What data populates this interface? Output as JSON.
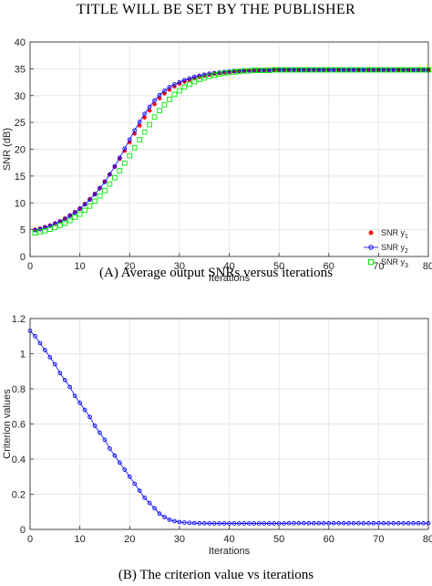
{
  "page_title": "TITLE WILL BE SET BY THE PUBLISHER",
  "colors": {
    "y1": "#ff0000",
    "y2": "#0000ff",
    "y3": "#00ee00",
    "criterion": "#0000ff",
    "grid": "#e6e6e6"
  },
  "chart_data": [
    {
      "type": "scatter",
      "caption": "(A) Average output SNRs versus iterations",
      "xlabel": "Iterations",
      "ylabel": "SNR (dB)",
      "xlim": [
        0,
        80
      ],
      "ylim": [
        0,
        40
      ],
      "xticks": [
        0,
        10,
        20,
        30,
        40,
        50,
        60,
        70,
        80
      ],
      "yticks": [
        0,
        5,
        10,
        15,
        20,
        25,
        30,
        35,
        40
      ],
      "grid": true,
      "legend_position": "right",
      "series": [
        {
          "name": "SNR y",
          "sub": "1",
          "marker": "star",
          "color": "#ff0000",
          "x": [
            1,
            2,
            3,
            4,
            5,
            6,
            7,
            8,
            9,
            10,
            11,
            12,
            13,
            14,
            15,
            16,
            17,
            18,
            19,
            20,
            21,
            22,
            23,
            24,
            25,
            26,
            27,
            28,
            29,
            30,
            31,
            32,
            33,
            34,
            35,
            36,
            37,
            38,
            39,
            40,
            41,
            42,
            43,
            44,
            45,
            46,
            47,
            48,
            49,
            50,
            51,
            52,
            53,
            54,
            55,
            56,
            57,
            58,
            59,
            60,
            61,
            62,
            63,
            64,
            65,
            66,
            67,
            68,
            69,
            70,
            71,
            72,
            73,
            74,
            75,
            76,
            77,
            78,
            79,
            80
          ],
          "y": [
            5.0,
            5.2,
            5.5,
            5.8,
            6.2,
            6.6,
            7.1,
            7.7,
            8.3,
            9.0,
            9.8,
            10.7,
            11.7,
            12.8,
            14.0,
            15.3,
            16.7,
            18.2,
            19.7,
            21.3,
            22.9,
            24.4,
            25.9,
            27.2,
            28.4,
            29.5,
            30.4,
            31.1,
            31.7,
            32.2,
            32.6,
            32.9,
            33.2,
            33.5,
            33.7,
            33.9,
            34.1,
            34.2,
            34.3,
            34.4,
            34.5,
            34.6,
            34.6,
            34.7,
            34.7,
            34.7,
            34.7,
            34.7,
            34.8,
            34.8,
            34.8,
            34.8,
            34.8,
            34.8,
            34.8,
            34.8,
            34.8,
            34.8,
            34.8,
            34.8,
            34.8,
            34.8,
            34.8,
            34.8,
            34.8,
            34.8,
            34.8,
            34.8,
            34.8,
            34.8,
            34.8,
            34.8,
            34.8,
            34.8,
            34.8,
            34.8,
            34.8,
            34.8,
            34.8,
            34.8
          ]
        },
        {
          "name": "SNR y",
          "sub": "2",
          "marker": "circle-line",
          "color": "#0000ff",
          "x": [
            1,
            2,
            3,
            4,
            5,
            6,
            7,
            8,
            9,
            10,
            11,
            12,
            13,
            14,
            15,
            16,
            17,
            18,
            19,
            20,
            21,
            22,
            23,
            24,
            25,
            26,
            27,
            28,
            29,
            30,
            31,
            32,
            33,
            34,
            35,
            36,
            37,
            38,
            39,
            40,
            41,
            42,
            43,
            44,
            45,
            46,
            47,
            48,
            49,
            50,
            51,
            52,
            53,
            54,
            55,
            56,
            57,
            58,
            59,
            60,
            61,
            62,
            63,
            64,
            65,
            66,
            67,
            68,
            69,
            70,
            71,
            72,
            73,
            74,
            75,
            76,
            77,
            78,
            79,
            80
          ],
          "y": [
            4.9,
            5.1,
            5.4,
            5.7,
            6.1,
            6.5,
            7.0,
            7.6,
            8.2,
            8.9,
            9.7,
            10.6,
            11.6,
            12.7,
            13.9,
            15.3,
            16.8,
            18.4,
            20.1,
            21.8,
            23.5,
            25.1,
            26.6,
            27.9,
            29.1,
            30.1,
            30.9,
            31.6,
            32.1,
            32.5,
            32.9,
            33.2,
            33.5,
            33.7,
            33.9,
            34.1,
            34.2,
            34.3,
            34.4,
            34.5,
            34.6,
            34.6,
            34.7,
            34.7,
            34.7,
            34.7,
            34.8,
            34.8,
            34.8,
            34.8,
            34.8,
            34.8,
            34.8,
            34.8,
            34.8,
            34.8,
            34.8,
            34.8,
            34.8,
            34.8,
            34.8,
            34.8,
            34.8,
            34.8,
            34.8,
            34.8,
            34.8,
            34.8,
            34.8,
            34.8,
            34.8,
            34.8,
            34.8,
            34.8,
            34.8,
            34.8,
            34.8,
            34.8,
            34.8,
            34.8
          ]
        },
        {
          "name": "SNR y",
          "sub": "3",
          "marker": "square",
          "color": "#00ee00",
          "x": [
            1,
            2,
            3,
            4,
            5,
            6,
            7,
            8,
            9,
            10,
            11,
            12,
            13,
            14,
            15,
            16,
            17,
            18,
            19,
            20,
            21,
            22,
            23,
            24,
            25,
            26,
            27,
            28,
            29,
            30,
            31,
            32,
            33,
            34,
            35,
            36,
            37,
            38,
            39,
            40,
            41,
            42,
            43,
            44,
            45,
            46,
            47,
            48,
            49,
            50,
            51,
            52,
            53,
            54,
            55,
            56,
            57,
            58,
            59,
            60,
            61,
            62,
            63,
            64,
            65,
            66,
            67,
            68,
            69,
            70,
            71,
            72,
            73,
            74,
            75,
            76,
            77,
            78,
            79,
            80
          ],
          "y": [
            4.4,
            4.6,
            4.8,
            5.1,
            5.4,
            5.8,
            6.2,
            6.7,
            7.3,
            7.9,
            8.6,
            9.4,
            10.3,
            11.3,
            12.3,
            13.5,
            14.7,
            16.0,
            17.4,
            18.8,
            20.3,
            21.8,
            23.2,
            24.6,
            26.0,
            27.2,
            28.3,
            29.3,
            30.2,
            30.9,
            31.6,
            32.1,
            32.6,
            33.0,
            33.3,
            33.6,
            33.8,
            34.0,
            34.2,
            34.3,
            34.4,
            34.5,
            34.6,
            34.6,
            34.7,
            34.7,
            34.7,
            34.7,
            34.8,
            34.8,
            34.8,
            34.8,
            34.8,
            34.8,
            34.8,
            34.8,
            34.8,
            34.8,
            34.8,
            34.8,
            34.8,
            34.8,
            34.8,
            34.8,
            34.8,
            34.8,
            34.8,
            34.8,
            34.8,
            34.8,
            34.8,
            34.8,
            34.8,
            34.8,
            34.8,
            34.8,
            34.8,
            34.8,
            34.8,
            34.8
          ]
        }
      ]
    },
    {
      "type": "line",
      "caption": "(B) The criterion value vs iterations",
      "xlabel": "Iterations",
      "ylabel": "Criterion values",
      "xlim": [
        0,
        80
      ],
      "ylim": [
        0,
        1.2
      ],
      "xticks": [
        0,
        10,
        20,
        30,
        40,
        50,
        60,
        70,
        80
      ],
      "yticks": [
        0,
        0.2,
        0.4,
        0.6,
        0.8,
        1,
        1.2
      ],
      "ytick_labels": [
        "0",
        "0.2",
        "0.4",
        "0.6",
        "0.8",
        "1",
        "1.2"
      ],
      "grid": true,
      "series": [
        {
          "name": "",
          "marker": "circle-line",
          "color": "#0000ff",
          "x": [
            0,
            1,
            2,
            3,
            4,
            5,
            6,
            7,
            8,
            9,
            10,
            11,
            12,
            13,
            14,
            15,
            16,
            17,
            18,
            19,
            20,
            21,
            22,
            23,
            24,
            25,
            26,
            27,
            28,
            29,
            30,
            31,
            32,
            33,
            34,
            35,
            36,
            37,
            38,
            39,
            40,
            41,
            42,
            43,
            44,
            45,
            46,
            47,
            48,
            49,
            50,
            51,
            52,
            53,
            54,
            55,
            56,
            57,
            58,
            59,
            60,
            61,
            62,
            63,
            64,
            65,
            66,
            67,
            68,
            69,
            70,
            71,
            72,
            73,
            74,
            75,
            76,
            77,
            78,
            79,
            80
          ],
          "y": [
            1.13,
            1.1,
            1.06,
            1.02,
            0.98,
            0.94,
            0.89,
            0.85,
            0.81,
            0.76,
            0.72,
            0.68,
            0.64,
            0.59,
            0.55,
            0.51,
            0.46,
            0.42,
            0.38,
            0.34,
            0.3,
            0.26,
            0.22,
            0.18,
            0.15,
            0.12,
            0.09,
            0.07,
            0.055,
            0.047,
            0.042,
            0.039,
            0.037,
            0.036,
            0.035,
            0.035,
            0.034,
            0.034,
            0.034,
            0.034,
            0.034,
            0.034,
            0.034,
            0.034,
            0.034,
            0.034,
            0.034,
            0.034,
            0.034,
            0.034,
            0.034,
            0.034,
            0.035,
            0.035,
            0.035,
            0.035,
            0.035,
            0.035,
            0.035,
            0.035,
            0.035,
            0.035,
            0.035,
            0.035,
            0.035,
            0.035,
            0.035,
            0.035,
            0.035,
            0.035,
            0.035,
            0.035,
            0.035,
            0.035,
            0.035,
            0.035,
            0.035,
            0.035,
            0.035,
            0.035,
            0.035
          ]
        }
      ]
    }
  ]
}
